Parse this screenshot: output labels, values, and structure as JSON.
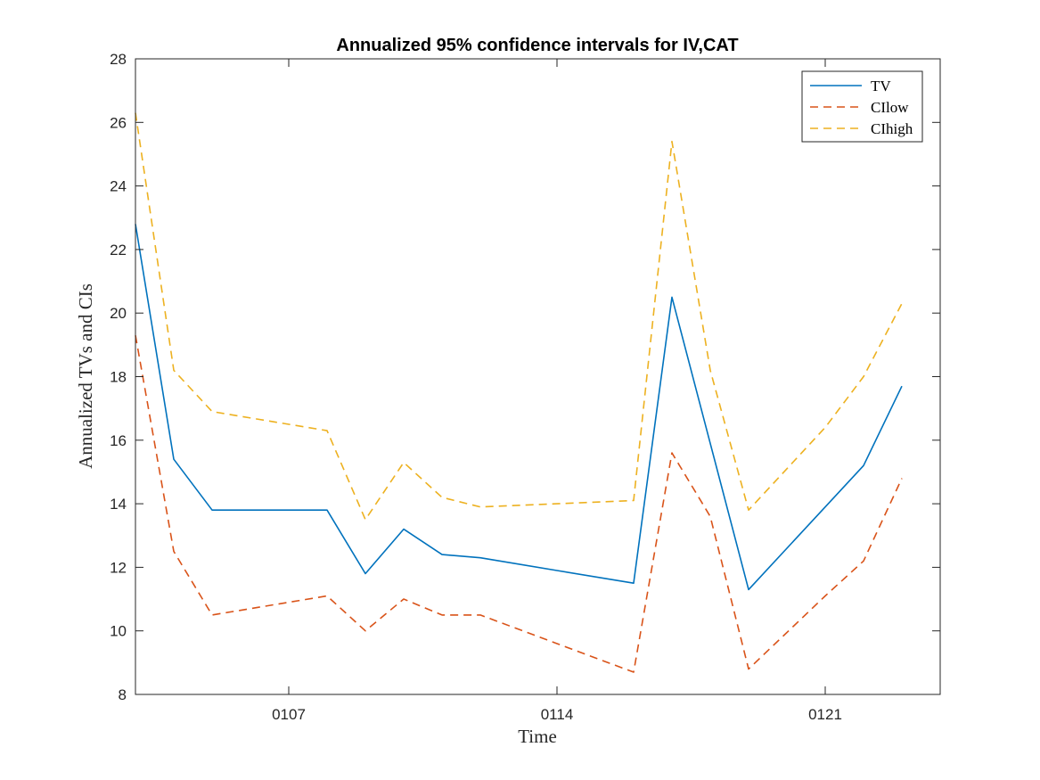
{
  "chart_data": {
    "type": "line",
    "title": "Annualized 95% confidence intervals for IV,CAT",
    "xlabel": "Time",
    "ylabel": "Annualized TVs and CIs",
    "ylim": [
      8,
      28
    ],
    "xlim": [
      0.0,
      21.0
    ],
    "yticks": [
      8,
      10,
      12,
      14,
      16,
      18,
      20,
      22,
      24,
      26,
      28
    ],
    "xticks": [
      {
        "value": 4,
        "label": "0107"
      },
      {
        "value": 11,
        "label": "0114"
      },
      {
        "value": 18,
        "label": "0121"
      }
    ],
    "x": [
      0.0,
      1.0,
      2.0,
      5.0,
      6.0,
      7.0,
      8.0,
      9.0,
      11.0,
      13.0,
      14.0,
      15.0,
      16.0,
      18.0,
      19.0,
      20.0
    ],
    "series": [
      {
        "name": "TV",
        "color": "#0072BD",
        "dash": "solid",
        "values": [
          22.8,
          15.4,
          13.8,
          13.8,
          11.8,
          13.2,
          12.4,
          12.3,
          11.9,
          11.5,
          20.5,
          15.9,
          11.3,
          13.9,
          15.2,
          17.7
        ]
      },
      {
        "name": "CIlow",
        "color": "#D95319",
        "dash": "dashed",
        "values": [
          19.3,
          12.5,
          10.5,
          11.1,
          10.0,
          11.0,
          10.5,
          10.5,
          9.6,
          8.7,
          15.6,
          13.6,
          8.8,
          11.1,
          12.2,
          14.8
        ]
      },
      {
        "name": "CIhigh",
        "color": "#EDB120",
        "dash": "dashed",
        "values": [
          26.3,
          18.2,
          16.9,
          16.3,
          13.5,
          15.3,
          14.2,
          13.9,
          14.0,
          14.1,
          25.4,
          18.2,
          13.8,
          16.4,
          18.0,
          20.3
        ]
      }
    ],
    "grid": false,
    "legend": "top-right"
  }
}
